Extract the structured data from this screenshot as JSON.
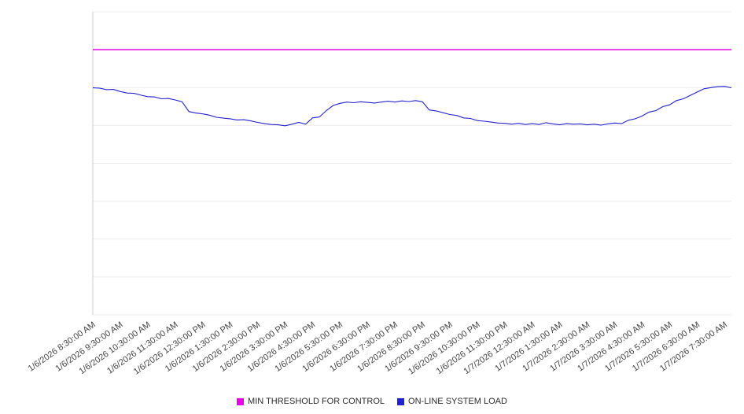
{
  "chart_data": {
    "type": "line",
    "title": "",
    "xlabel": "",
    "ylabel": "",
    "ylim": [
      0,
      100
    ],
    "y_gridline_step": 12.5,
    "y_axis_tick_labels_visible": false,
    "grid": true,
    "legend_position": "bottom",
    "points_per_tick": 4,
    "x_tick_labels": [
      "1/6/2026 8:30:00 AM",
      "1/6/2026 9:30:00 AM",
      "1/6/2026 10:30:00 AM",
      "1/6/2026 11:30:00 AM",
      "1/6/2026 12:30:00 PM",
      "1/6/2026 1:30:00 PM",
      "1/6/2026 2:30:00 PM",
      "1/6/2026 3:30:00 PM",
      "1/6/2026 4:30:00 PM",
      "1/6/2026 5:30:00 PM",
      "1/6/2026 6:30:00 PM",
      "1/6/2026 7:30:00 PM",
      "1/6/2026 8:30:00 PM",
      "1/6/2026 9:30:00 PM",
      "1/6/2026 10:30:00 PM",
      "1/6/2026 11:30:00 PM",
      "1/7/2026 12:30:00 AM",
      "1/7/2026 1:30:00 AM",
      "1/7/2026 2:30:00 AM",
      "1/7/2026 3:30:00 AM",
      "1/7/2026 4:30:00 AM",
      "1/7/2026 5:30:00 AM",
      "1/7/2026 6:30:00 AM",
      "1/7/2026 7:30:00 AM"
    ],
    "series": [
      {
        "name": "MIN THRESHOLD FOR CONTROL",
        "type": "constant",
        "color": "#e800e8",
        "value": 87.5
      },
      {
        "name": "ON-LINE SYSTEM LOAD",
        "type": "line",
        "color": "#2222cc",
        "values": [
          74.9,
          74.8,
          74.3,
          74.4,
          73.7,
          73.2,
          73.1,
          72.5,
          72.0,
          71.9,
          71.3,
          71.4,
          70.9,
          70.3,
          67.1,
          66.6,
          66.3,
          65.9,
          65.2,
          64.9,
          64.7,
          64.3,
          64.4,
          64.0,
          63.5,
          63.1,
          62.8,
          62.7,
          62.4,
          62.9,
          63.5,
          62.9,
          65.0,
          65.3,
          67.4,
          69.1,
          69.8,
          70.2,
          70.0,
          70.3,
          70.1,
          69.9,
          70.2,
          70.5,
          70.2,
          70.6,
          70.4,
          70.7,
          70.3,
          67.6,
          67.3,
          66.7,
          66.1,
          65.8,
          65.0,
          64.8,
          64.1,
          63.9,
          63.6,
          63.3,
          63.2,
          62.9,
          63.2,
          62.8,
          63.1,
          62.8,
          63.4,
          63.0,
          62.7,
          63.1,
          62.9,
          63.0,
          62.7,
          62.9,
          62.6,
          63.0,
          63.3,
          63.1,
          64.2,
          64.7,
          65.6,
          66.9,
          67.4,
          68.7,
          69.3,
          70.7,
          71.3,
          72.4,
          73.5,
          74.6,
          75.0,
          75.3,
          75.4,
          74.9
        ]
      }
    ],
    "colors": {
      "gridline": "#ececec",
      "axis": "#cccccc",
      "tick_label": "#444444"
    }
  }
}
